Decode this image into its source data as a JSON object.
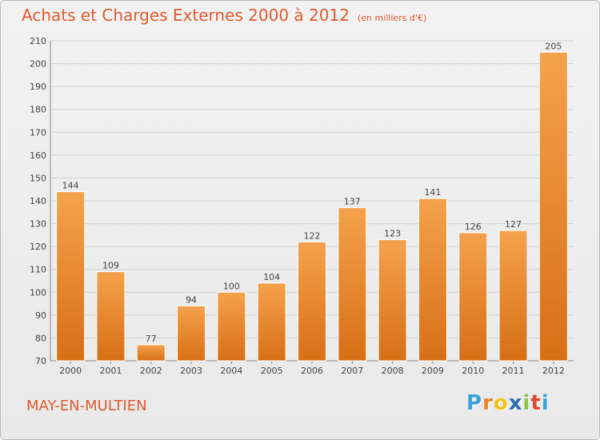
{
  "chart_data": {
    "type": "bar",
    "title": "Achats et Charges Externes 2000 à 2012",
    "subtitle": "(en milliers d'€)",
    "categories": [
      "2000",
      "2001",
      "2002",
      "2003",
      "2004",
      "2005",
      "2006",
      "2007",
      "2008",
      "2009",
      "2010",
      "2011",
      "2012"
    ],
    "values": [
      144,
      109,
      77,
      94,
      100,
      104,
      122,
      137,
      123,
      141,
      126,
      127,
      205
    ],
    "ylim": [
      70,
      210
    ],
    "yticks": [
      70,
      80,
      90,
      100,
      110,
      120,
      130,
      140,
      150,
      160,
      170,
      180,
      190,
      200,
      210
    ],
    "grid": true,
    "bar_color_top": "#f5a24c",
    "bar_color_bottom": "#d86f15"
  },
  "commune": "MAY-EN-MULTIEN",
  "logo": {
    "letters": [
      "P",
      "r",
      "o",
      "x",
      "i",
      "t",
      "i"
    ],
    "colors": [
      "#3aa0d8",
      "#e8822a",
      "#f0c419",
      "#2f6db3",
      "#8bc34a",
      "#e0452e",
      "#3aa0d8"
    ]
  }
}
